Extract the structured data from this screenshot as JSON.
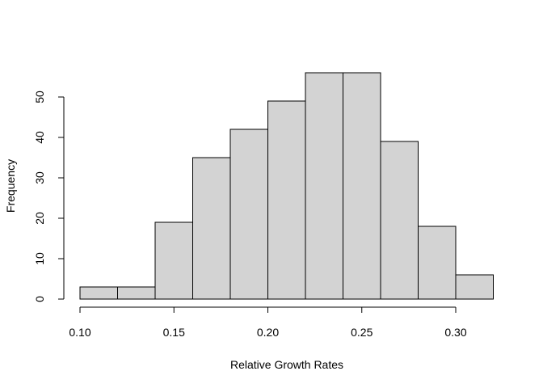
{
  "chart_data": {
    "type": "bar",
    "subtype": "histogram",
    "title": "",
    "xlabel": "Relative Growth Rates",
    "ylabel": "Frequency",
    "bins": [
      {
        "start": 0.1,
        "end": 0.12,
        "count": 3
      },
      {
        "start": 0.12,
        "end": 0.14,
        "count": 3
      },
      {
        "start": 0.14,
        "end": 0.16,
        "count": 19
      },
      {
        "start": 0.16,
        "end": 0.18,
        "count": 35
      },
      {
        "start": 0.18,
        "end": 0.2,
        "count": 42
      },
      {
        "start": 0.2,
        "end": 0.22,
        "count": 49
      },
      {
        "start": 0.22,
        "end": 0.24,
        "count": 56
      },
      {
        "start": 0.24,
        "end": 0.26,
        "count": 56
      },
      {
        "start": 0.26,
        "end": 0.28,
        "count": 39
      },
      {
        "start": 0.28,
        "end": 0.3,
        "count": 18
      },
      {
        "start": 0.3,
        "end": 0.32,
        "count": 6
      }
    ],
    "xlim": [
      0.1,
      0.32
    ],
    "ylim": [
      0,
      56
    ],
    "x_ticks": [
      0.1,
      0.15,
      0.2,
      0.25,
      0.3
    ],
    "x_tick_labels": [
      "0.10",
      "0.15",
      "0.20",
      "0.25",
      "0.30"
    ],
    "y_ticks": [
      0,
      10,
      20,
      30,
      40,
      50
    ],
    "y_tick_labels": [
      "0",
      "10",
      "20",
      "30",
      "40",
      "50"
    ],
    "grid": false,
    "legend": "none",
    "bar_fill": "#d3d3d3",
    "bar_stroke": "#000000"
  }
}
